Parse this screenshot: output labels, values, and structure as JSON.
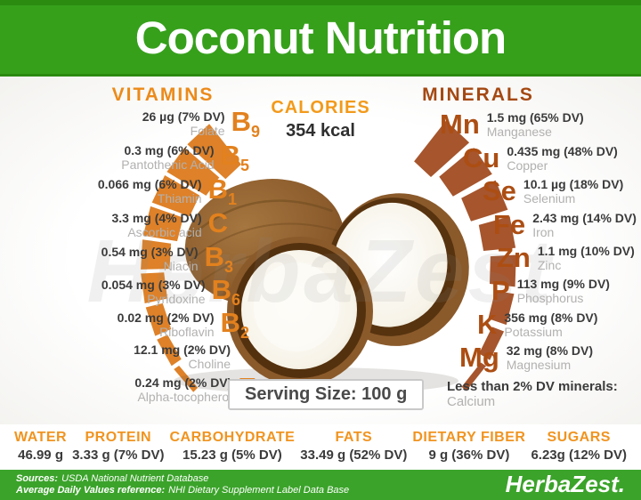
{
  "header": {
    "title": "Coconut Nutrition"
  },
  "watermark": "HerbaZest",
  "calories": {
    "label": "CALORIES",
    "value": "354 kcal"
  },
  "vitamins": {
    "label": "VITAMINS",
    "items": [
      {
        "amount": "26 µg (7% DV)",
        "name": "Folate",
        "symbol": "B",
        "sub": "9",
        "dv": 7
      },
      {
        "amount": "0.3 mg (6% DV)",
        "name": "Pantothenic Acid",
        "symbol": "B",
        "sub": "5",
        "dv": 6
      },
      {
        "amount": "0.066 mg (6% DV)",
        "name": "Thiamin",
        "symbol": "B",
        "sub": "1",
        "dv": 6
      },
      {
        "amount": "3.3 mg (4% DV)",
        "name": "Ascorbic acid",
        "symbol": "C",
        "sub": "",
        "dv": 4
      },
      {
        "amount": "0.54 mg (3% DV)",
        "name": "Niacin",
        "symbol": "B",
        "sub": "3",
        "dv": 3
      },
      {
        "amount": "0.054 mg (3% DV)",
        "name": "Pyridoxine",
        "symbol": "B",
        "sub": "6",
        "dv": 3
      },
      {
        "amount": "0.02 mg (2% DV)",
        "name": "Riboflavin",
        "symbol": "B",
        "sub": "2",
        "dv": 2
      },
      {
        "amount": "12.1 mg (2% DV)",
        "name": "Choline",
        "symbol": "",
        "sub": "",
        "dv": 2
      },
      {
        "amount": "0.24 mg (2% DV)",
        "name": "Alpha-tocopherol",
        "symbol": "E",
        "sub": "",
        "dv": 2
      }
    ]
  },
  "minerals": {
    "label": "MINERALS",
    "items": [
      {
        "symbol": "Mn",
        "amount": "1.5 mg (65% DV)",
        "name": "Manganese",
        "dv": 65
      },
      {
        "symbol": "Cu",
        "amount": "0.435 mg (48% DV)",
        "name": "Copper",
        "dv": 48
      },
      {
        "symbol": "Se",
        "amount": "10.1 µg (18% DV)",
        "name": "Selenium",
        "dv": 18
      },
      {
        "symbol": "Fe",
        "amount": "2.43 mg (14% DV)",
        "name": "Iron",
        "dv": 14
      },
      {
        "symbol": "Zn",
        "amount": "1.1 mg (10% DV)",
        "name": "Zinc",
        "dv": 10
      },
      {
        "symbol": "P",
        "amount": "113 mg (9% DV)",
        "name": "Phosphorus",
        "dv": 9
      },
      {
        "symbol": "K",
        "amount": "356 mg (8% DV)",
        "name": "Potassium",
        "dv": 8
      },
      {
        "symbol": "Mg",
        "amount": "32 mg (8% DV)",
        "name": "Magnesium",
        "dv": 8
      }
    ],
    "footnote_bold": "Less than 2% DV minerals:",
    "footnote_name": "Calcium"
  },
  "serving": {
    "label": "Serving Size: 100 g"
  },
  "macros": [
    {
      "label": "WATER",
      "value": "46.99 g"
    },
    {
      "label": "PROTEIN",
      "value": "3.33 g (7% DV)"
    },
    {
      "label": "CARBOHYDRATE",
      "value": "15.23 g (5% DV)"
    },
    {
      "label": "FATS",
      "value": "33.49 g (52% DV)"
    },
    {
      "label": "DIETARY FIBER",
      "value": "9 g (36% DV)"
    },
    {
      "label": "SUGARS",
      "value": "6.23g (12% DV)"
    }
  ],
  "footer": {
    "sources_label": "Sources:",
    "sources_value": "USDA National Nutrient Database",
    "adv_label": "Average Daily Values reference:",
    "adv_value": "NHI Dietary Supplement Label Data Base",
    "logo": "HerbaZest."
  },
  "colors": {
    "green": "#36A01B",
    "green_dark": "#2B8A10",
    "orange": "#EC8A1A",
    "orange_wedge": "#DE8128",
    "mineral": "#A44812",
    "mineral_wedge": "#A6552D"
  }
}
